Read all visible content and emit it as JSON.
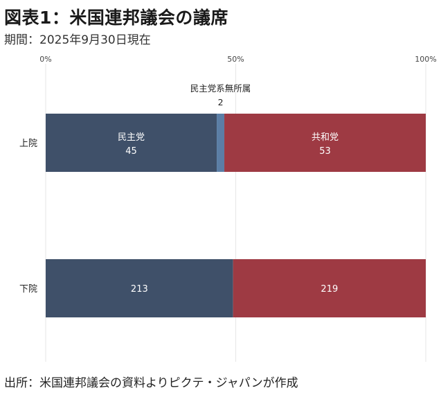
{
  "header": {
    "title": "図表1：米国連邦議会の議席",
    "subtitle": "期間：2025年9月30日現在"
  },
  "footer": {
    "source": "出所：米国連邦議会の資料よりピクテ・ジャパンが作成"
  },
  "chart_data": {
    "type": "bar",
    "orientation": "horizontal",
    "stacked": "percent",
    "categories": [
      "上院",
      "下院"
    ],
    "x_ticks": [
      "0%",
      "50%",
      "100%"
    ],
    "xlim": [
      0,
      100
    ],
    "grid": true,
    "series": [
      {
        "name": "民主党",
        "values": [
          45,
          213
        ],
        "color": "#3f5069"
      },
      {
        "name": "民主党系無所属",
        "values": [
          2,
          0
        ],
        "color": "#5b7ea6"
      },
      {
        "name": "共和党",
        "values": [
          53,
          219
        ],
        "color": "#9e3a43"
      }
    ]
  }
}
